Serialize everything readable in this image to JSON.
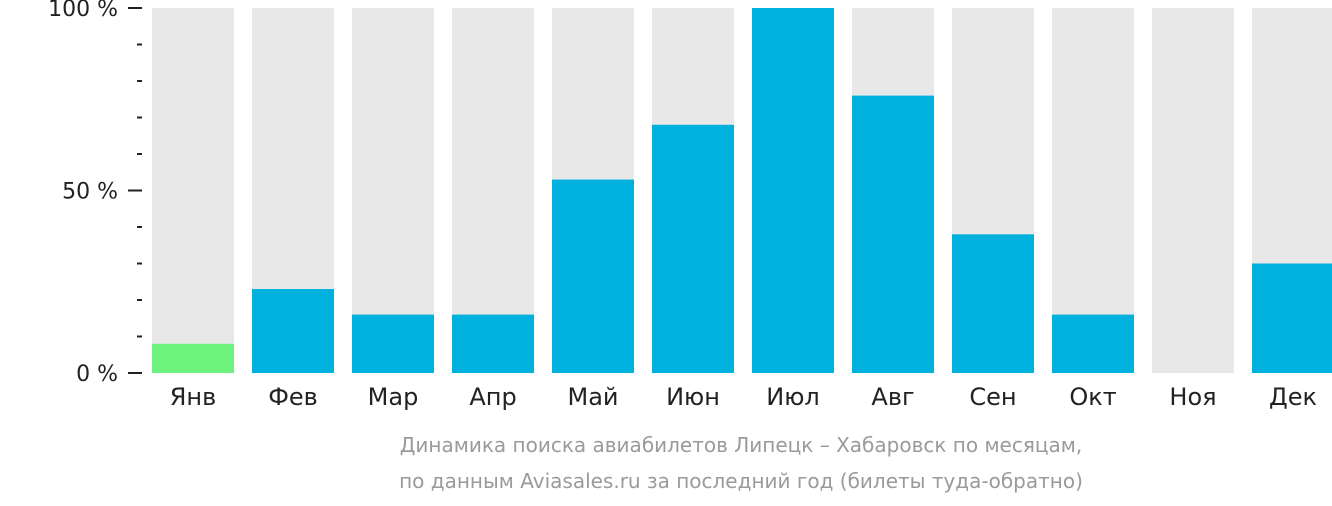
{
  "chart_data": {
    "type": "bar",
    "categories": [
      "Янв",
      "Фев",
      "Мар",
      "Апр",
      "Май",
      "Июн",
      "Июл",
      "Авг",
      "Сен",
      "Окт",
      "Ноя",
      "Дек"
    ],
    "values": [
      8,
      23,
      16,
      16,
      53,
      68,
      100,
      76,
      38,
      16,
      0,
      30
    ],
    "highlight_index": 0,
    "ylim": [
      0,
      100
    ],
    "y_ticks": [
      {
        "value": 0,
        "label": "0 %"
      },
      {
        "value": 50,
        "label": "50 %"
      },
      {
        "value": 100,
        "label": "100 %"
      }
    ],
    "minor_tick_step": 10,
    "colors": {
      "bar": "#00b0dd",
      "bar_highlight": "#6cf27d",
      "track": "#e8e8e8",
      "axis": "#222222"
    },
    "caption": [
      "Динамика поиска авиабилетов Липецк – Хабаровск по месяцам,",
      "по данным Aviasales.ru за последний год (билеты туда-обратно)"
    ]
  }
}
